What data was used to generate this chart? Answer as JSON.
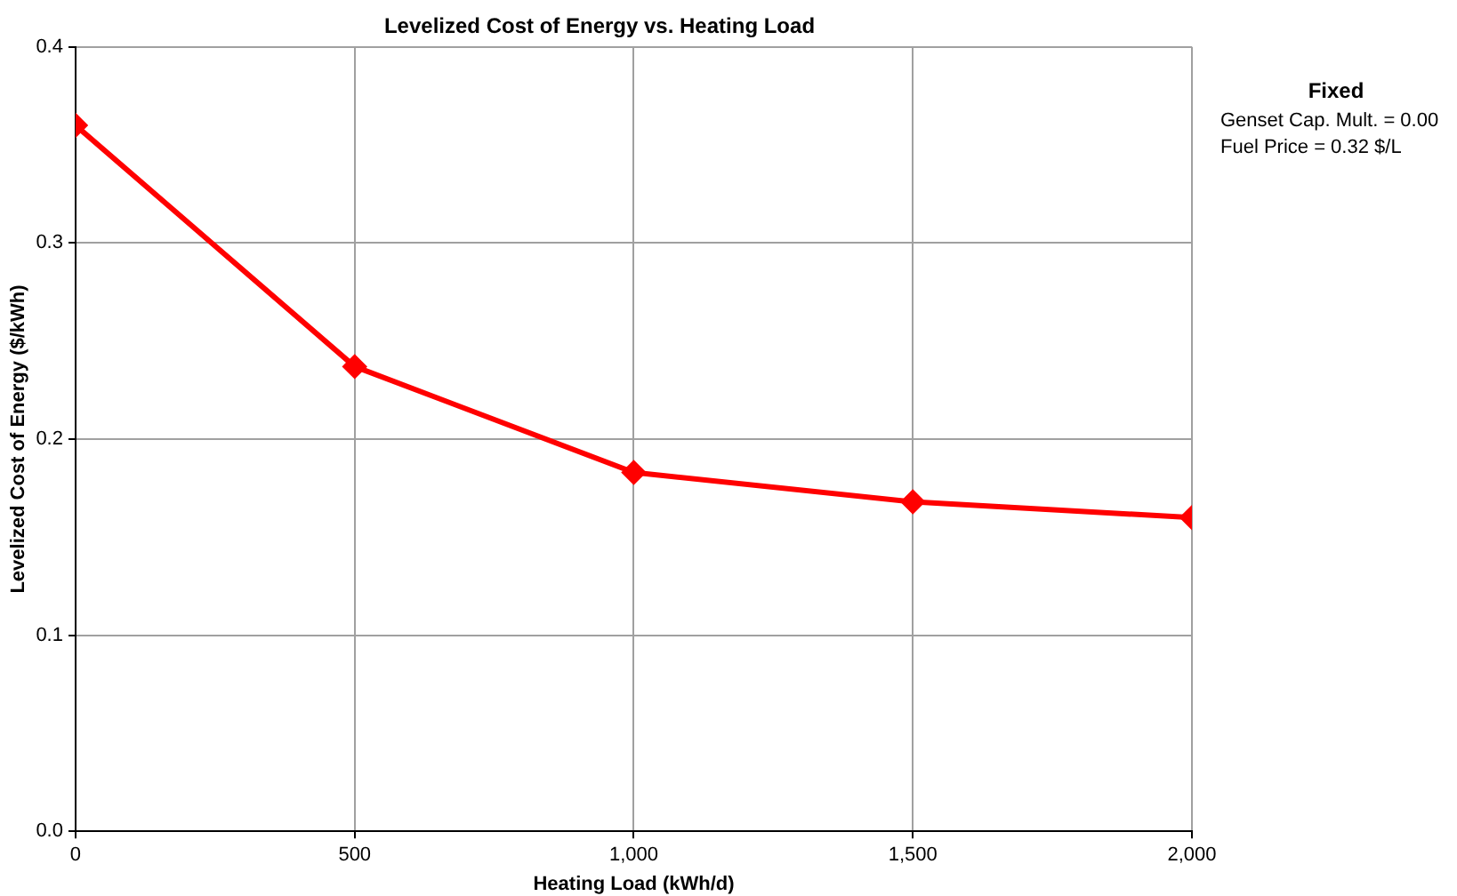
{
  "chart_data": {
    "type": "line",
    "title": "Levelized Cost of Energy vs. Heating Load",
    "xlabel": "Heating Load (kWh/d)",
    "ylabel": "Levelized Cost of Energy ($/kWh)",
    "x": [
      0,
      500,
      1000,
      1500,
      2000
    ],
    "series": [
      {
        "color": "#ff0000",
        "values": [
          0.36,
          0.237,
          0.183,
          0.168,
          0.16
        ]
      }
    ],
    "xlim": [
      0,
      2000
    ],
    "xticks": [
      0,
      500,
      {
        "value": 1000,
        "label": "1,000"
      },
      {
        "value": 1500,
        "label": "1,500"
      },
      {
        "value": 2000,
        "label": "2,000"
      }
    ],
    "ylim": [
      0,
      0.4
    ],
    "yticks": [
      {
        "value": 0,
        "label": "0.0"
      },
      0.1,
      0.2,
      0.3,
      0.4
    ],
    "grid": true,
    "legend": false,
    "marker": "diamond",
    "line_style": "solid",
    "annotations": [
      "Fixed",
      "Genset Cap. Mult. = 0.00",
      "Fuel Price = 0.32 $/L"
    ]
  }
}
